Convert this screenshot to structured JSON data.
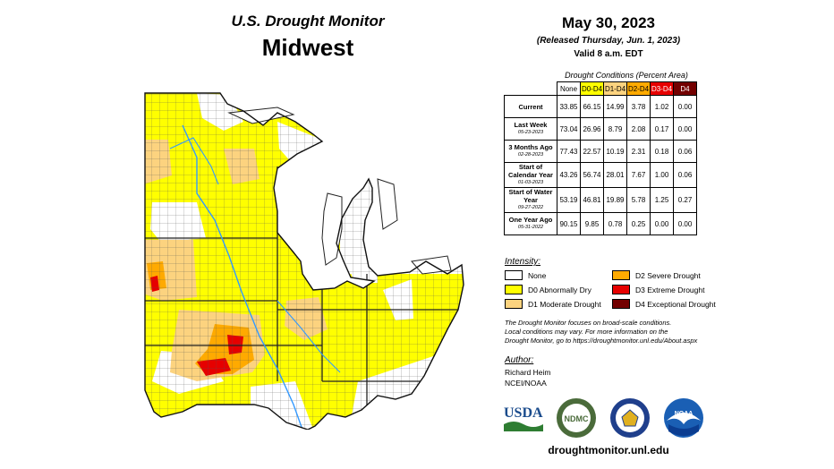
{
  "header": {
    "title_line1": "U.S. Drought Monitor",
    "title_line2": "Midwest",
    "date": "May 30, 2023",
    "released": "(Released Thursday, Jun. 1, 2023)",
    "valid": "Valid 8 a.m. EDT"
  },
  "table": {
    "title": "Drought Conditions (Percent Area)",
    "columns": [
      "None",
      "D0-D4",
      "D1-D4",
      "D2-D4",
      "D3-D4",
      "D4"
    ],
    "column_colors": [
      "#ffffff",
      "#ffff00",
      "#fcd37f",
      "#ffaa00",
      "#e60000",
      "#730000"
    ],
    "rows": [
      {
        "label": "Current",
        "date": "",
        "values": [
          "33.85",
          "66.15",
          "14.99",
          "3.78",
          "1.02",
          "0.00"
        ]
      },
      {
        "label": "Last Week",
        "date": "05-23-2023",
        "values": [
          "73.04",
          "26.96",
          "8.79",
          "2.08",
          "0.17",
          "0.00"
        ]
      },
      {
        "label": "3 Months Ago",
        "date": "02-28-2023",
        "values": [
          "77.43",
          "22.57",
          "10.19",
          "2.31",
          "0.18",
          "0.06"
        ]
      },
      {
        "label": "Start of Calendar Year",
        "date": "01-03-2023",
        "values": [
          "43.26",
          "56.74",
          "28.01",
          "7.67",
          "1.00",
          "0.06"
        ]
      },
      {
        "label": "Start of Water Year",
        "date": "09-27-2022",
        "values": [
          "53.19",
          "46.81",
          "19.89",
          "5.78",
          "1.25",
          "0.27"
        ]
      },
      {
        "label": "One Year Ago",
        "date": "05-31-2022",
        "values": [
          "90.15",
          "9.85",
          "0.78",
          "0.25",
          "0.00",
          "0.00"
        ]
      }
    ]
  },
  "legend": {
    "heading": "Intensity:",
    "items": [
      {
        "label": "None",
        "color": "#ffffff"
      },
      {
        "label": "D0 Abnormally Dry",
        "color": "#ffff00"
      },
      {
        "label": "D1 Moderate Drought",
        "color": "#fcd37f"
      },
      {
        "label": "D2 Severe Drought",
        "color": "#ffaa00"
      },
      {
        "label": "D3 Extreme Drought",
        "color": "#e60000"
      },
      {
        "label": "D4 Exceptional Drought",
        "color": "#730000"
      }
    ]
  },
  "note": {
    "line1": "The Drought Monitor focuses on broad-scale conditions.",
    "line2": "Local conditions may vary. For more information on the",
    "line3": "Drought Monitor, go to https://droughtmonitor.unl.edu/About.aspx"
  },
  "author": {
    "heading": "Author:",
    "name": "Richard Heim",
    "org": "NCEI/NOAA"
  },
  "logos": {
    "usda": "USDA",
    "ndmc": "NDMC",
    "noaa": "NOAA"
  },
  "footer_url": "droughtmonitor.unl.edu"
}
